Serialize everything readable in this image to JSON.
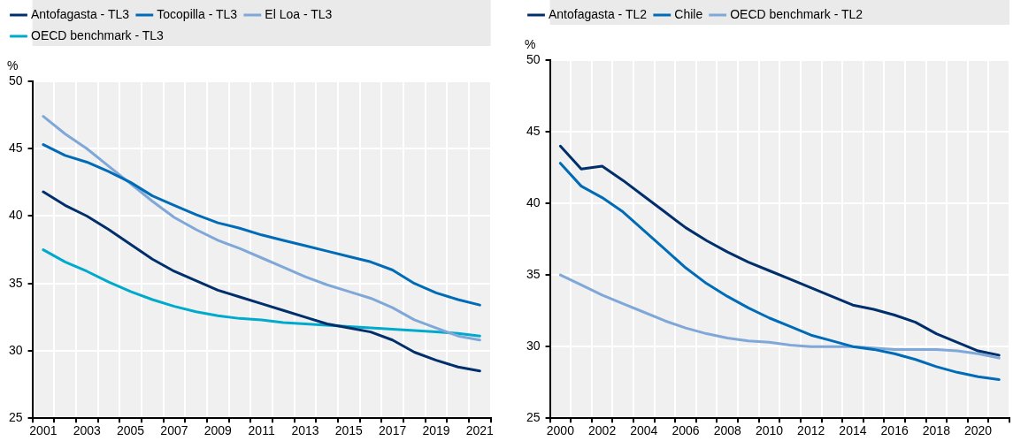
{
  "chart_data": [
    {
      "type": "line",
      "ylabel": "%",
      "categories": [
        "2001",
        null,
        "2003",
        null,
        "2005",
        null,
        "2007",
        null,
        "2009",
        null,
        "2011",
        null,
        "2013",
        null,
        "2015",
        null,
        "2017",
        null,
        "2019",
        null,
        "2021"
      ],
      "series": [
        {
          "name": "Antofagasta - TL3",
          "color": "#002f6c",
          "values": [
            41.8,
            40.8,
            40.0,
            39.0,
            37.9,
            36.8,
            35.9,
            35.2,
            34.5,
            34.0,
            33.5,
            33.0,
            32.5,
            32.0,
            31.7,
            31.4,
            30.8,
            29.9,
            29.3,
            28.8,
            28.5
          ]
        },
        {
          "name": "Tocopilla - TL3",
          "color": "#006bb6",
          "values": [
            45.3,
            44.5,
            44.0,
            43.3,
            42.5,
            41.5,
            40.8,
            40.1,
            39.5,
            39.1,
            38.6,
            38.2,
            37.8,
            37.4,
            37.0,
            36.6,
            36.0,
            35.0,
            34.3,
            33.8,
            33.4
          ]
        },
        {
          "name": "El Loa - TL3",
          "color": "#7fa8d9",
          "values": [
            47.4,
            46.1,
            45.0,
            43.7,
            42.4,
            41.1,
            39.9,
            39.0,
            38.2,
            37.6,
            36.9,
            36.2,
            35.5,
            34.9,
            34.4,
            33.9,
            33.2,
            32.3,
            31.7,
            31.1,
            30.8
          ]
        },
        {
          "name": "OECD benchmark - TL3",
          "color": "#00aacc",
          "values": [
            37.5,
            36.6,
            35.9,
            35.1,
            34.4,
            33.8,
            33.3,
            32.9,
            32.6,
            32.4,
            32.3,
            32.1,
            32.0,
            31.9,
            31.8,
            31.7,
            31.6,
            31.5,
            31.4,
            31.3,
            31.1
          ]
        }
      ],
      "ylim": [
        25,
        50
      ],
      "yticks": [
        25,
        30,
        35,
        40,
        45,
        50
      ],
      "grid": true,
      "legend": "top",
      "marker": "none",
      "line_style": "solid"
    },
    {
      "type": "line",
      "ylabel": "%",
      "categories": [
        "2000",
        null,
        "2002",
        null,
        "2004",
        null,
        "2006",
        null,
        "2008",
        null,
        "2010",
        null,
        "2012",
        null,
        "2014",
        null,
        "2016",
        null,
        "2018",
        null,
        "2020",
        null
      ],
      "series": [
        {
          "name": "Antofagasta - TL2",
          "color": "#002f6c",
          "values": [
            44.0,
            42.4,
            42.6,
            41.6,
            40.5,
            39.4,
            38.3,
            37.4,
            36.6,
            35.9,
            35.3,
            34.7,
            34.1,
            33.5,
            32.9,
            32.6,
            32.2,
            31.7,
            30.9,
            30.3,
            29.7,
            29.4
          ]
        },
        {
          "name": "Chile",
          "color": "#006bb6",
          "values": [
            42.8,
            41.2,
            40.4,
            39.4,
            38.1,
            36.8,
            35.5,
            34.4,
            33.5,
            32.7,
            32.0,
            31.4,
            30.8,
            30.4,
            30.0,
            29.8,
            29.5,
            29.1,
            28.6,
            28.2,
            27.9,
            27.7
          ]
        },
        {
          "name": "OECD benchmark - TL2",
          "color": "#7fa8d9",
          "values": [
            35.0,
            34.3,
            33.6,
            33.0,
            32.4,
            31.8,
            31.3,
            30.9,
            30.6,
            30.4,
            30.3,
            30.1,
            30.0,
            30.0,
            30.0,
            29.9,
            29.8,
            29.8,
            29.8,
            29.7,
            29.5,
            29.2
          ]
        }
      ],
      "ylim": [
        25,
        50
      ],
      "yticks": [
        25,
        30,
        35,
        40,
        45,
        50
      ],
      "grid": true,
      "legend": "top",
      "marker": "none",
      "line_style": "solid"
    }
  ]
}
